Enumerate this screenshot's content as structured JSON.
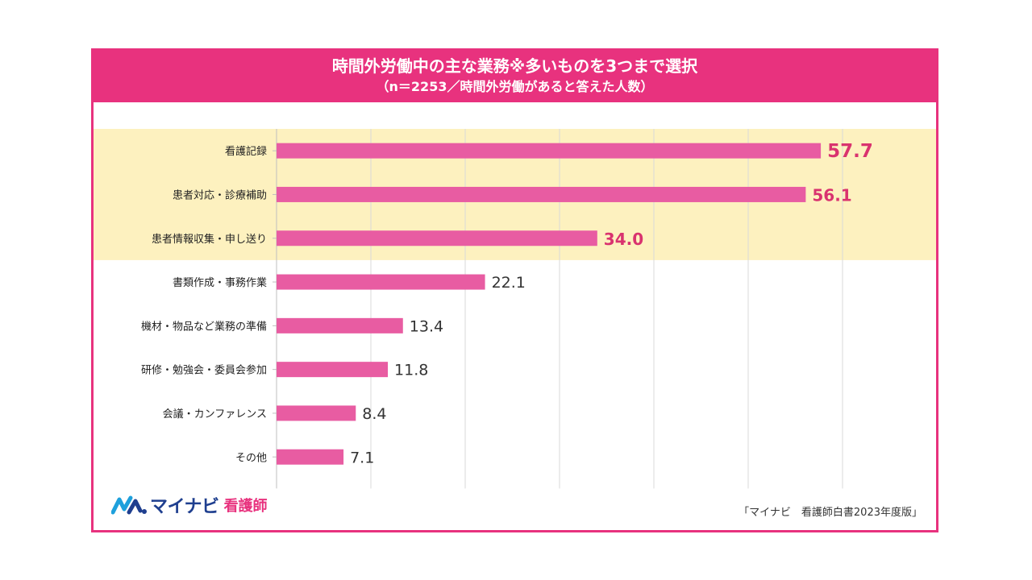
{
  "header": {
    "title": "時間外労働中の主な業務※多いものを3つまで選択",
    "subtitle": "（n＝2253／時間外労働があると答えた人数）"
  },
  "logo": {
    "brand": "マイナビ",
    "sub": "看護師"
  },
  "source": "「マイナビ　看護師白書2023年度版」",
  "colors": {
    "accent": "#e8327e",
    "bar": "#e85ca2",
    "highlight_bg": "#fdf1bf",
    "top_label": "#d9336f",
    "normal_label": "#333333"
  },
  "chart_data": {
    "type": "bar",
    "orientation": "horizontal",
    "title": "時間外労働中の主な業務※多いものを3つまで選択",
    "subtitle": "（n＝2253／時間外労働があると答えた人数）",
    "categories": [
      "看護記録",
      "患者対応・診療補助",
      "患者情報収集・申し送り",
      "書類作成・事務作業",
      "機材・物品など業務の準備",
      "研修・勉強会・委員会参加",
      "会議・カンファレンス",
      "その他"
    ],
    "values": [
      57.7,
      56.1,
      34.0,
      22.1,
      13.4,
      11.8,
      8.4,
      7.1
    ],
    "value_labels": [
      "57.7",
      "56.1",
      "34.0",
      "22.1",
      "13.4",
      "11.8",
      "8.4",
      "7.1"
    ],
    "highlighted_count": 3,
    "xlim": [
      0,
      60
    ],
    "grid_step": 10,
    "grid": true,
    "unit": "%"
  }
}
